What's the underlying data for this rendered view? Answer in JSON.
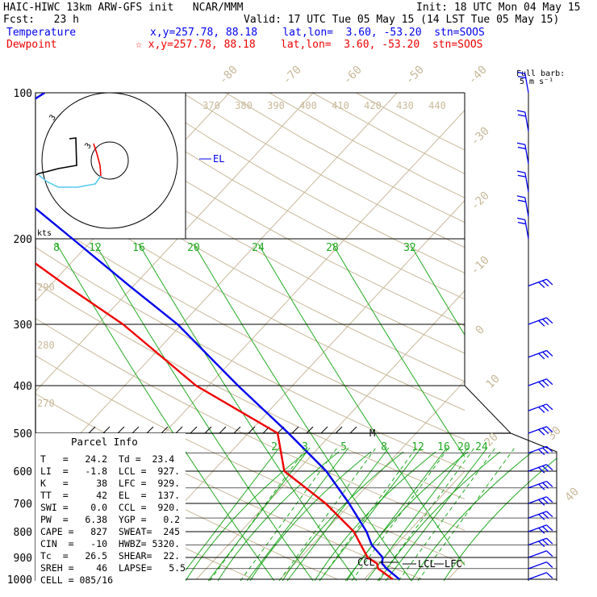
{
  "header": {
    "line1_left": "HAIC-HIWC 13km ARW-GFS init   NCAR/MMM",
    "line1_right": "Init: 18 UTC Mon 04 May 15",
    "line2_left": "Fcst:   23 h",
    "line2_right": "Valid: 17 UTC Tue 05 May 15 (14 LST Tue 05 May 15)",
    "temp_label": "Temperature",
    "temp_info": "x,y=257.78, 88.18    lat,lon=  3.60, -53.20  stn=SOOS",
    "dew_label": "Dewpoint",
    "dew_info": "☆ x,y=257.78, 88.18    lat,lon=  3.60, -53.20  stn=SOOS"
  },
  "barb_legend": {
    "line1": "Full barb:",
    "line2": "5 m s⁻¹"
  },
  "hodograph_label": "kts",
  "markers": {
    "el": "EL",
    "m": "M",
    "ccl": "CCL",
    "lcl": "LCL",
    "lfc": "LFC"
  },
  "colors": {
    "temperature": "#0000ee",
    "dewpoint": "#ee0000",
    "isotherm": "#c8b89a",
    "mixing_ratio": "#22aa22",
    "hodo_cyan": "#55ccee",
    "grid": "#000000"
  },
  "parcel": {
    "title": "Parcel Info",
    "rows": [
      "T   =   24.2  Td =  23.4",
      "LI  =   -1.8  LCL =  927.",
      "K   =     38  LFC =  929.",
      "TT  =     42  EL  =  137.",
      "SWI =    0.0  CCL =  920.",
      "PW  =   6.38  YGP =   0.2",
      "CAPE =   827  SWEAT=  245",
      "CIN  =   -10  HWBZ= 5320.",
      "Tc  =   26.5  SHEAR=  22.",
      "SREH =    46  LAPSE=   5.5",
      "CELL = 085/16"
    ]
  },
  "chart_data": {
    "type": "line",
    "title": "",
    "ylabel": "",
    "xlabel": "",
    "y_scale": "log (pressure)",
    "ylim": [
      1000,
      100
    ],
    "pressure_levels": [
      "100",
      "200",
      "300",
      "400",
      "500",
      "600",
      "700",
      "800",
      "900",
      "1000"
    ],
    "isotherm_labels": [
      "-80",
      "-70",
      "-60",
      "-50",
      "-40",
      "-30",
      "-20",
      "-10",
      "0",
      "10",
      "20",
      "30",
      "40"
    ],
    "theta_labels_top": [
      "370",
      "380",
      "390",
      "400",
      "410",
      "420",
      "430",
      "440"
    ],
    "theta_labels_left": [
      "290",
      "280",
      "270"
    ],
    "mixing_ratio_upper": [
      "8",
      "12",
      "16",
      "20",
      "24",
      "28",
      "32"
    ],
    "mixing_ratio_lower": [
      "2",
      "3",
      "5",
      "8",
      "12",
      "16",
      "20",
      "24"
    ],
    "series": [
      {
        "name": "Temperature",
        "points": [
          {
            "p": 1000,
            "t": 24.2
          },
          {
            "p": 950,
            "t": 21.5
          },
          {
            "p": 927,
            "t": 20.4
          },
          {
            "p": 900,
            "t": 19.8
          },
          {
            "p": 850,
            "t": 17.1
          },
          {
            "p": 800,
            "t": 15.0
          },
          {
            "p": 700,
            "t": 9.8
          },
          {
            "p": 600,
            "t": 3.5
          },
          {
            "p": 500,
            "t": -5.2
          },
          {
            "p": 400,
            "t": -16.5
          },
          {
            "p": 300,
            "t": -30.5
          },
          {
            "p": 250,
            "t": -40.5
          },
          {
            "p": 200,
            "t": -52.5
          },
          {
            "p": 150,
            "t": -68.0
          },
          {
            "p": 137,
            "t": -74.0
          },
          {
            "p": 120,
            "t": -75.0
          },
          {
            "p": 100,
            "t": -72.0
          }
        ]
      },
      {
        "name": "Dewpoint",
        "points": [
          {
            "p": 1000,
            "t": 23.4
          },
          {
            "p": 950,
            "t": 20.5
          },
          {
            "p": 927,
            "t": 19.8
          },
          {
            "p": 900,
            "t": 18.0
          },
          {
            "p": 850,
            "t": 15.8
          },
          {
            "p": 800,
            "t": 13.5
          },
          {
            "p": 700,
            "t": 7.0
          },
          {
            "p": 600,
            "t": -1.5
          },
          {
            "p": 500,
            "t": -6.5
          },
          {
            "p": 400,
            "t": -21.5
          },
          {
            "p": 300,
            "t": -37.0
          },
          {
            "p": 250,
            "t": -48.0
          },
          {
            "p": 200,
            "t": -61.0
          },
          {
            "p": 160,
            "t": -75.0
          },
          {
            "p": 130,
            "t": -88.0
          },
          {
            "p": 110,
            "t": -88.0
          },
          {
            "p": 100,
            "t": -83.0
          }
        ]
      }
    ],
    "wind_barbs_at": [
      100,
      120,
      140,
      160,
      180,
      200,
      250,
      300,
      350,
      400,
      450,
      500,
      550,
      600,
      650,
      700,
      750,
      800,
      850,
      900,
      950,
      1000
    ],
    "parcel_points": {
      "lcl": 927,
      "lfc": 929,
      "el": 137,
      "ccl": 920
    }
  }
}
